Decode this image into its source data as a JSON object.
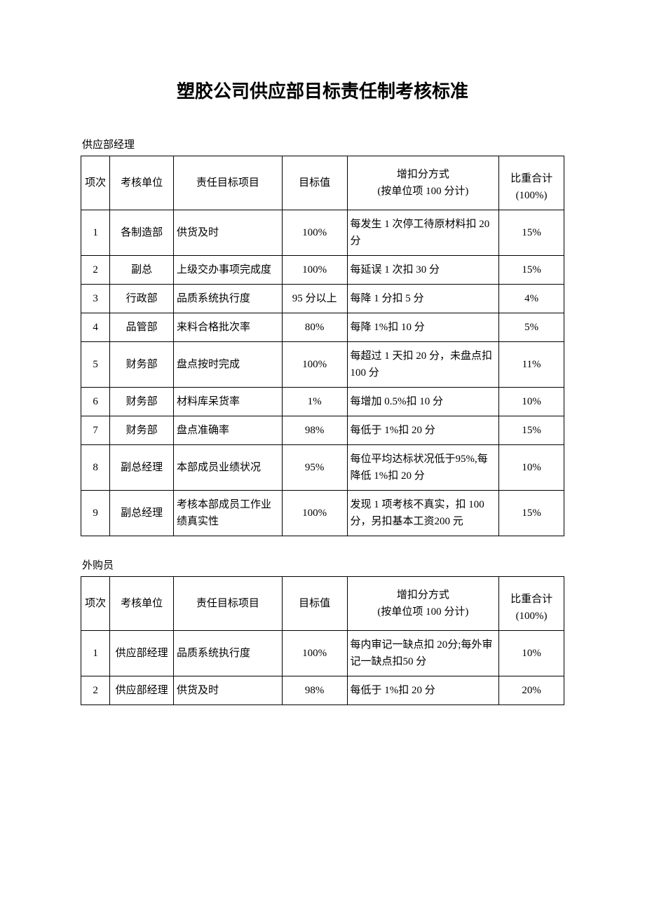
{
  "page": {
    "title": "塑胶公司供应部目标责任制考核标准",
    "background_color": "#ffffff",
    "text_color": "#000000",
    "border_color": "#000000",
    "title_fontsize": 26,
    "body_fontsize": 15
  },
  "section1": {
    "subtitle": "供应部经理",
    "columns": {
      "c1": "项次",
      "c2": "考核单位",
      "c3": "责任目标项目",
      "c4": "目标值",
      "c5_line1": "增扣分方式",
      "c5_line2": "(按单位项 100 分计)",
      "c6_line1": "比重合计",
      "c6_line2": "(100%)"
    },
    "rows": [
      {
        "idx": "1",
        "unit": "各制造部",
        "item": "供货及时",
        "target": "100%",
        "method": "每发生 1 次停工待原材料扣 20 分",
        "weight": "15%"
      },
      {
        "idx": "2",
        "unit": "副总",
        "item": "上级交办事项完成度",
        "target": "100%",
        "method": "每延误 1 次扣 30 分",
        "weight": "15%"
      },
      {
        "idx": "3",
        "unit": "行政部",
        "item": "品质系统执行度",
        "target": "95 分以上",
        "method": "每降 1 分扣 5 分",
        "weight": "4%"
      },
      {
        "idx": "4",
        "unit": "品管部",
        "item": "来料合格批次率",
        "target": "80%",
        "method": "每降 1%扣 10 分",
        "weight": "5%"
      },
      {
        "idx": "5",
        "unit": "财务部",
        "item": "盘点按时完成",
        "target": "100%",
        "method": "每超过 1 天扣 20 分，未盘点扣 100 分",
        "weight": "11%"
      },
      {
        "idx": "6",
        "unit": "财务部",
        "item": "材料库呆货率",
        "target": "1%",
        "method": "每增加 0.5%扣 10 分",
        "weight": "10%"
      },
      {
        "idx": "7",
        "unit": "财务部",
        "item": "盘点准确率",
        "target": "98%",
        "method": "每低于 1%扣 20 分",
        "weight": "15%"
      },
      {
        "idx": "8",
        "unit": "副总经理",
        "item": "本部成员业绩状况",
        "target": "95%",
        "method": "每位平均达标状况低于95%,每降低 1%扣 20 分",
        "weight": "10%"
      },
      {
        "idx": "9",
        "unit": "副总经理",
        "item": "考核本部成员工作业绩真实性",
        "target": "100%",
        "method": "发现 1 项考核不真实，扣 100 分，另扣基本工资200 元",
        "weight": "15%"
      }
    ]
  },
  "section2": {
    "subtitle": "外购员",
    "columns": {
      "c1": "项次",
      "c2": "考核单位",
      "c3": "责任目标项目",
      "c4": "目标值",
      "c5_line1": "增扣分方式",
      "c5_line2": "(按单位项 100 分计)",
      "c6_line1": "比重合计",
      "c6_line2": "(100%)"
    },
    "rows": [
      {
        "idx": "1",
        "unit": "供应部经理",
        "item": "品质系统执行度",
        "target": "100%",
        "method": "每内审记一缺点扣 20分;每外审记一缺点扣50 分",
        "weight": "10%"
      },
      {
        "idx": "2",
        "unit": "供应部经理",
        "item": "供货及时",
        "target": "98%",
        "method": "每低于 1%扣 20 分",
        "weight": "20%"
      }
    ]
  }
}
